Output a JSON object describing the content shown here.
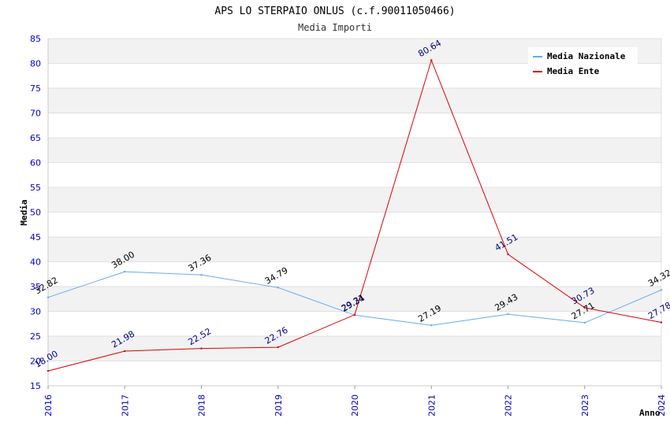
{
  "chart_data": {
    "type": "line",
    "title": "APS LO STERPAIO ONLUS (c.f.90011050466)",
    "subtitle": "Media Importi",
    "xlabel": "Anno",
    "ylabel": "Media",
    "categories": [
      "2016",
      "2017",
      "2018",
      "2019",
      "2020",
      "2021",
      "2022",
      "2023",
      "2024"
    ],
    "ylim": [
      15,
      85
    ],
    "yticks": [
      "15",
      "20",
      "25",
      "30",
      "35",
      "40",
      "45",
      "50",
      "55",
      "60",
      "65",
      "70",
      "75",
      "80",
      "85"
    ],
    "legend_position": "top-right",
    "series": [
      {
        "name": "Media Nazionale",
        "color": "#66aaee",
        "label_color": "#000000",
        "values": [
          32.82,
          38.0,
          37.36,
          34.79,
          29.24,
          27.19,
          29.43,
          27.71,
          34.32
        ],
        "labels": [
          "32.82",
          "38.00",
          "37.36",
          "34.79",
          "29.24",
          "27.19",
          "29.43",
          "27.71",
          "34.32"
        ]
      },
      {
        "name": "Media Ente",
        "color": "#dd0000",
        "label_color": "#000080",
        "values": [
          18.0,
          21.98,
          22.52,
          22.76,
          29.31,
          80.64,
          41.51,
          30.73,
          27.78
        ],
        "labels": [
          "18.00",
          "21.98",
          "22.52",
          "22.76",
          "29.31",
          "80.64",
          "41.51",
          "30.73",
          "27.78"
        ]
      }
    ]
  }
}
